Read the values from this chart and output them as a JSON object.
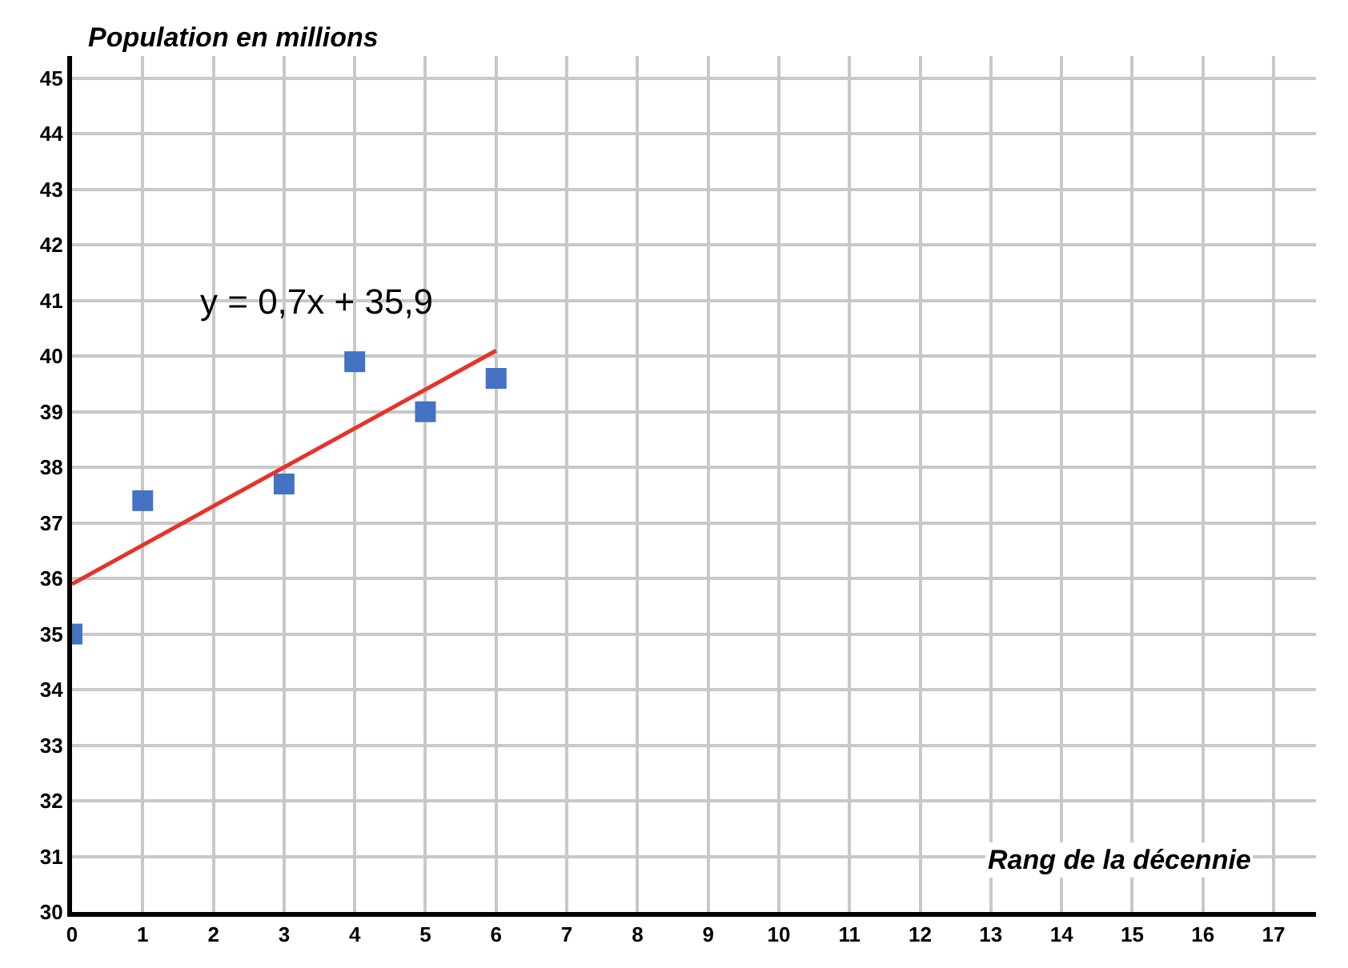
{
  "chart_data": {
    "type": "scatter",
    "xlabel": "Rang de la décennie",
    "ylabel": "Population en millions",
    "series": [
      {
        "marker": "square",
        "color": "#4472c4",
        "x": [
          0,
          1,
          3,
          4,
          5,
          6
        ],
        "values": [
          35,
          37.4,
          37.7,
          39.9,
          39,
          39.6
        ]
      },
      {
        "type": "line",
        "marker": "none",
        "color": "#e8322a",
        "x": [
          0,
          6
        ],
        "values": [
          35.9,
          40.1
        ]
      }
    ],
    "annotations": [
      "y = 0,7x + 35,9"
    ],
    "xlim": [
      0,
      17.6
    ],
    "xticks": [
      0,
      1,
      2,
      3,
      4,
      5,
      6,
      7,
      8,
      9,
      10,
      11,
      12,
      13,
      14,
      15,
      16,
      17
    ],
    "ylim": [
      30,
      45.4
    ],
    "yticks": [
      30,
      31,
      32,
      33,
      34,
      35,
      36,
      37,
      38,
      39,
      40,
      41,
      42,
      43,
      44,
      45
    ],
    "grid": true
  }
}
